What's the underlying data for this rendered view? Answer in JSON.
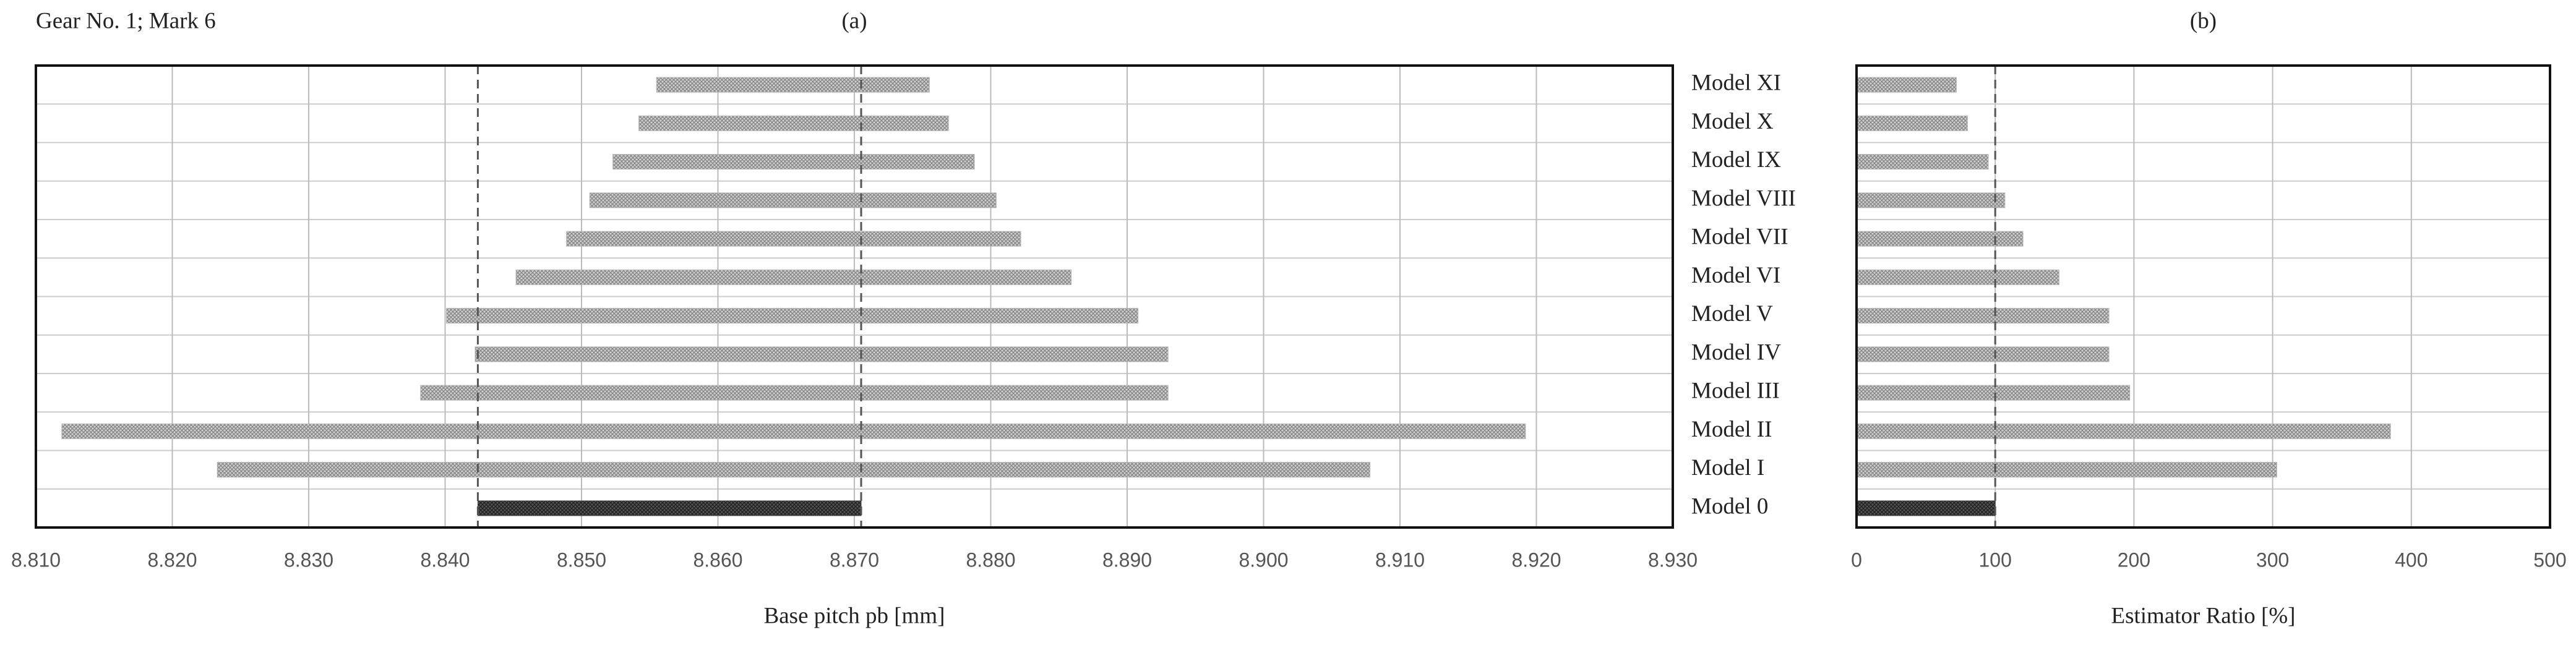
{
  "title": "Gear No. 1; Mark 6",
  "chart_data": [
    {
      "type": "range_bar",
      "title": "(a)",
      "xlabel": "Base pitch pb [mm]",
      "categories": [
        "Model 0",
        "Model I",
        "Model II",
        "Model III",
        "Model IV",
        "Model V",
        "Model VI",
        "Model VII",
        "Model VIII",
        "Model IX",
        "Model X",
        "Model XI"
      ],
      "start": [
        8.8424,
        8.8233,
        8.8119,
        8.8382,
        8.8422,
        8.8401,
        8.8452,
        8.8489,
        8.8506,
        8.8523,
        8.8542,
        8.8555
      ],
      "end": [
        8.8705,
        8.9078,
        8.9192,
        8.893,
        8.893,
        8.8908,
        8.8859,
        8.8822,
        8.8804,
        8.8788,
        8.8769,
        8.8755
      ],
      "color": "#b4b4b4",
      "reference_color": "#4a4a4a",
      "xlim": [
        8.81,
        8.93
      ],
      "xticks": [
        {
          "value": 8.81,
          "label": "8.810"
        },
        {
          "value": 8.82,
          "label": "8.820"
        },
        {
          "value": 8.83,
          "label": "8.830"
        },
        {
          "value": 8.84,
          "label": "8.840"
        },
        {
          "value": 8.85,
          "label": "8.850"
        },
        {
          "value": 8.86,
          "label": "8.860"
        },
        {
          "value": 8.87,
          "label": "8.870"
        },
        {
          "value": 8.88,
          "label": "8.880"
        },
        {
          "value": 8.89,
          "label": "8.890"
        },
        {
          "value": 8.9,
          "label": "8.900"
        },
        {
          "value": 8.91,
          "label": "8.910"
        },
        {
          "value": 8.92,
          "label": "8.920"
        },
        {
          "value": 8.93,
          "label": "8.930"
        }
      ],
      "grid": true
    },
    {
      "type": "bar",
      "title": "(b)",
      "xlabel": "Estimator Ratio [%]",
      "categories": [
        "Model 0",
        "Model I",
        "Model II",
        "Model III",
        "Model IV",
        "Model V",
        "Model VI",
        "Model VII",
        "Model VIII",
        "Model IX",
        "Model X",
        "Model XI"
      ],
      "values": [
        100,
        303,
        385,
        197,
        182,
        182,
        146,
        120,
        107,
        95,
        80,
        72
      ],
      "color": "#b4b4b4",
      "reference_color": "#4a4a4a",
      "xlim": [
        0,
        500
      ],
      "xticks": [
        0,
        100,
        200,
        300,
        400,
        500
      ],
      "grid": true
    }
  ]
}
